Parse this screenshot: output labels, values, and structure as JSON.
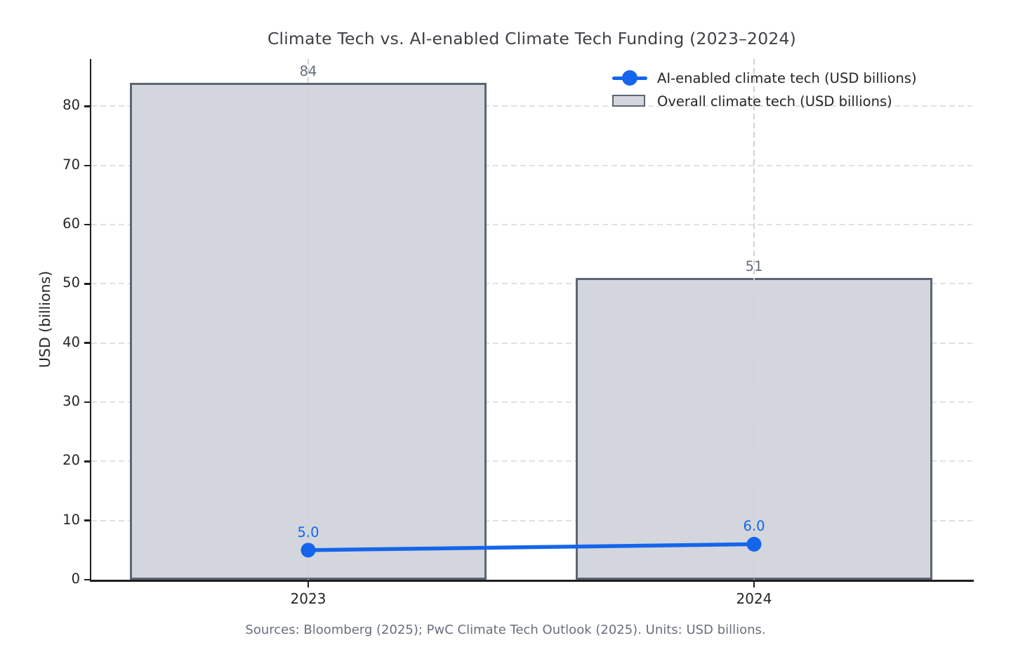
{
  "chart_data": {
    "type": "bar+line",
    "title": "Climate Tech vs. AI-enabled Climate Tech Funding (2023–2024)",
    "categories": [
      "2023",
      "2024"
    ],
    "series": [
      {
        "name": "Overall climate tech (USD billions)",
        "type": "bar",
        "values": [
          84,
          51
        ],
        "data_labels": [
          "84",
          "51"
        ],
        "fill_color": "#d3d6dc",
        "edge_color": "#5c6573",
        "label_color": "#646e7e"
      },
      {
        "name": "AI-enabled climate tech (USD billions)",
        "type": "line",
        "values": [
          5.0,
          6.0
        ],
        "data_labels": [
          "5.0",
          "6.0"
        ],
        "color": "#1565ec"
      }
    ],
    "xlabel": "",
    "ylabel": "USD (billions)",
    "yticks": [
      0,
      10,
      20,
      30,
      40,
      50,
      60,
      70,
      80
    ],
    "ylim": [
      0,
      88
    ],
    "grid": "dashed, horizontal and vertical",
    "legend_position": "upper-right",
    "source_note": "Sources: Bloomberg (2025); PwC Climate Tech Outlook (2025). Units: USD billions."
  },
  "colors": {
    "spine": "#1f1f1f",
    "grid_horizontal": "#e0e1e6",
    "grid_vertical": "#d2d2d6",
    "tick_label": "#262626",
    "title_text": "#3d4046",
    "source_text": "#68707c"
  }
}
